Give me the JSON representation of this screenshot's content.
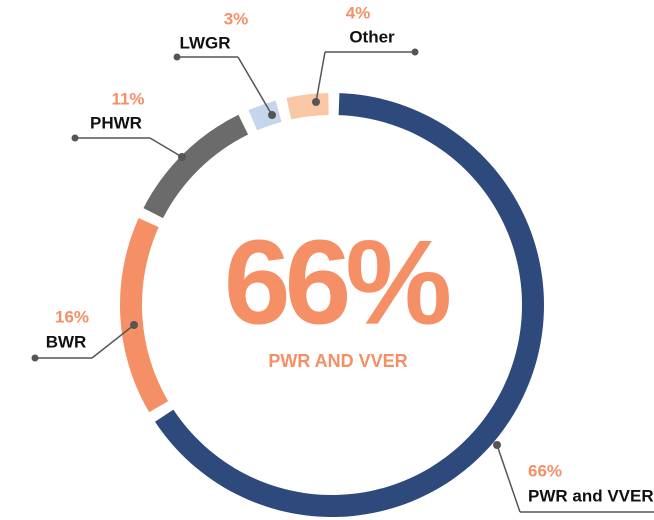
{
  "chart_data": {
    "type": "donut",
    "center_label": "66%",
    "center_sublabel": "PWR AND VVER",
    "categories": [
      "PWR and VVER",
      "BWR",
      "PHWR",
      "LWGR",
      "Other"
    ],
    "values": [
      66,
      16,
      11,
      3,
      4
    ],
    "value_labels": [
      "66%",
      "16%",
      "11%",
      "3%",
      "4%"
    ],
    "colors": [
      "#2e4a7d",
      "#f58f66",
      "#6b6b6b",
      "#c5d5ee",
      "#f9c7a6"
    ]
  }
}
